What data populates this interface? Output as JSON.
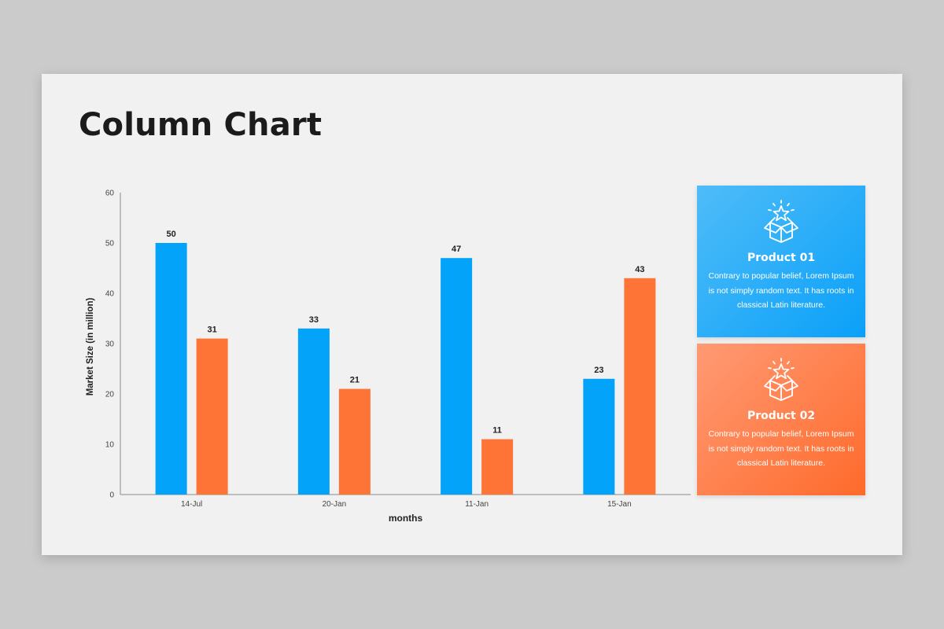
{
  "title": "Column Chart",
  "colors": {
    "series_blue": "#03a3f9",
    "series_orange": "#fe7336"
  },
  "chart_data": {
    "type": "bar",
    "categories": [
      "14-Jul",
      "20-Jan",
      "11-Jan",
      "15-Jan"
    ],
    "series": [
      {
        "values": [
          50,
          33,
          47,
          23
        ],
        "color": "#03a3f9"
      },
      {
        "values": [
          31,
          21,
          11,
          43
        ],
        "color": "#fe7336"
      }
    ],
    "xlabel": "months",
    "ylabel": "Market Size (in million)",
    "ylim": [
      0,
      60
    ],
    "yticks": [
      "0",
      "10",
      "20",
      "30",
      "40",
      "50",
      "60"
    ],
    "data_labels": true,
    "grid": false
  },
  "cards": [
    {
      "title": "Product 01",
      "text": "Contrary to popular belief, Lorem Ipsum is not simply random text. It has roots in classical Latin literature.",
      "icon": "open-box-star-icon",
      "color": "#0aa0f8"
    },
    {
      "title": "Product 02",
      "text": "Contrary to popular belief, Lorem Ipsum is not simply random text. It has roots in classical Latin literature.",
      "icon": "open-box-star-icon",
      "color": "#ff6a2b"
    }
  ]
}
